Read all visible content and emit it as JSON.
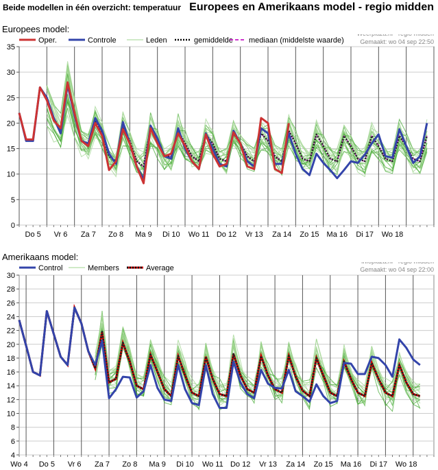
{
  "header": {
    "left_title": "Beide modellen in één overzicht: temperatuur",
    "right_title": "Europees en Amerikaans model - regio midden"
  },
  "colors": {
    "oper": "#cc3333",
    "control": "#3344aa",
    "members": "#44aa33",
    "members_light": "#9fd48f",
    "average_dark": "#222222",
    "average_red": "#cc0000",
    "median": "#cc33cc",
    "grid": "#cccccc",
    "daylines": "#555555"
  },
  "chart_data": [
    {
      "type": "line",
      "section_title": "Europees model:",
      "source": "Weerplaza.nl - regio midden",
      "made": "Gemaakt: wo 04 sep 22:50",
      "legend": [
        "Oper.",
        "Controle",
        "Leden",
        "gemiddelde",
        "mediaan (middelste waarde)"
      ],
      "ylim": [
        0,
        35
      ],
      "yticks": [
        0,
        5,
        10,
        15,
        20,
        25,
        30,
        35
      ],
      "xlim": [
        0,
        60
      ],
      "day_lines": [
        0,
        4,
        8,
        12,
        16,
        20,
        24,
        28,
        32,
        36,
        40,
        44,
        48,
        52,
        56,
        60
      ],
      "xtick_labels": [
        {
          "t": 2,
          "label": "Do 5"
        },
        {
          "t": 6,
          "label": "Vr 6"
        },
        {
          "t": 10,
          "label": "Za 7"
        },
        {
          "t": 14,
          "label": "Zo 8"
        },
        {
          "t": 18,
          "label": "Ma 9"
        },
        {
          "t": 22,
          "label": "Di 10"
        },
        {
          "t": 26,
          "label": "Wo 11"
        },
        {
          "t": 30,
          "label": "Do 12"
        },
        {
          "t": 34,
          "label": "Vr 13"
        },
        {
          "t": 38,
          "label": "Za 14"
        },
        {
          "t": 42,
          "label": "Zo 15"
        },
        {
          "t": 46,
          "label": "Ma 16"
        },
        {
          "t": 50,
          "label": "Di 17"
        },
        {
          "t": 54,
          "label": "Wo 18"
        }
      ],
      "series": [
        {
          "name": "Oper.",
          "style": "oper",
          "t0": 0,
          "values": [
            22,
            16.8,
            16.8,
            27,
            24.5,
            20.5,
            19,
            28,
            22,
            16.5,
            15.5,
            20,
            17.5,
            10.8,
            12.5,
            18.8,
            16,
            11.5,
            8.2,
            19,
            16,
            13.5,
            14,
            18,
            15.5,
            12.5,
            11,
            17.8,
            14,
            11.5,
            12,
            18.2,
            16,
            11.5,
            11,
            21,
            20,
            11,
            10.2,
            20
          ]
        },
        {
          "name": "Controle",
          "style": "control",
          "t0": 0,
          "values": [
            22,
            16.5,
            16.5,
            27,
            25,
            21,
            18,
            27.5,
            21.5,
            16.5,
            16,
            21,
            18.5,
            14,
            12,
            20.2,
            16,
            11.5,
            9,
            19.5,
            17,
            13.5,
            13,
            19,
            15,
            12.5,
            11,
            18,
            15,
            12,
            11.5,
            18.5,
            16,
            12.5,
            11.5,
            19,
            18,
            12,
            12,
            18,
            14,
            11,
            9.8,
            14,
            12.2,
            10.8,
            9.2,
            10.8,
            12.5,
            12.2,
            13.8,
            16,
            17.8,
            13.5,
            13.2,
            18.8,
            15.5,
            12.2,
            13.5,
            20
          ]
        },
        {
          "name": "gemiddelde",
          "style": "avg_dark",
          "t0": 0,
          "values": [
            22,
            16.6,
            16.6,
            27,
            24.8,
            21,
            18.5,
            27.8,
            22,
            16.5,
            15.5,
            20.5,
            18,
            13.5,
            12.5,
            19.5,
            16.5,
            12.5,
            11.5,
            19,
            16.5,
            13.5,
            13.5,
            18.5,
            16,
            13.5,
            12.5,
            17.8,
            16,
            13,
            12.5,
            18,
            16,
            13.5,
            12.5,
            18,
            16.5,
            13.5,
            12.5,
            18.5,
            16,
            13,
            12.5,
            17.8,
            15.5,
            13,
            12.5,
            17.5,
            15.5,
            13,
            12.5,
            17.5,
            15.5,
            13,
            12.5,
            17.5,
            15.5,
            13,
            12.5,
            17.5
          ]
        },
        {
          "name": "mediaan (middelste waarde)",
          "style": "median",
          "t0": 0,
          "values": [
            22,
            16.6,
            16.6,
            27,
            24.8,
            21,
            18.5,
            27.8,
            22,
            16.5,
            15.5,
            20.5,
            18,
            13.5,
            12.5,
            19.5,
            16.5,
            12.5,
            11.5,
            19,
            16.5,
            13.5,
            13.5,
            18.5,
            16,
            13.5,
            12.5,
            17.8,
            16,
            13,
            12.5,
            18,
            16,
            13.5,
            12.5,
            18,
            16.5,
            13.5,
            12.5,
            18.5,
            16,
            13,
            12.5,
            17.8,
            15.5,
            13,
            12.5,
            17.5,
            15.5,
            13,
            12.5,
            17.5,
            15.5,
            13,
            12.5,
            17.5,
            15.5,
            13,
            12.5,
            17.5
          ]
        }
      ],
      "members_ensemble": {
        "count": 22,
        "t_start": 4,
        "spread": 3.6,
        "generated": true
      }
    },
    {
      "type": "line",
      "section_title": "Amerikaans model:",
      "source": "Infoplaza.nl - regio midden",
      "made": "Gemaakt: wo 04 sep 22:00",
      "legend": [
        "Control",
        "Members",
        "Average"
      ],
      "ylim": [
        4,
        30
      ],
      "yticks": [
        4,
        6,
        8,
        10,
        12,
        14,
        16,
        18,
        20,
        22,
        24,
        26,
        28,
        30
      ],
      "xlim": [
        0,
        60
      ],
      "day_lines": [
        1,
        5,
        9,
        13,
        17,
        21,
        25,
        29,
        33,
        37,
        41,
        45,
        49,
        53,
        57
      ],
      "xtick_labels": [
        {
          "t": 0,
          "label": "Wo 4"
        },
        {
          "t": 4,
          "label": "Do 5"
        },
        {
          "t": 8,
          "label": "Vr 6"
        },
        {
          "t": 12,
          "label": "Za 7"
        },
        {
          "t": 16,
          "label": "Zo 8"
        },
        {
          "t": 20,
          "label": "Ma 9"
        },
        {
          "t": 24,
          "label": "Di 10"
        },
        {
          "t": 28,
          "label": "Wo 11"
        },
        {
          "t": 32,
          "label": "Do 12"
        },
        {
          "t": 36,
          "label": "Vr 13"
        },
        {
          "t": 40,
          "label": "Za 14"
        },
        {
          "t": 44,
          "label": "Zo 15"
        },
        {
          "t": 48,
          "label": "Ma 16"
        },
        {
          "t": 52,
          "label": "Di 17"
        },
        {
          "t": 56,
          "label": "Wo 18"
        }
      ],
      "series": [
        {
          "name": "Control",
          "style": "control",
          "t0": 0,
          "values": [
            23.5,
            19.8,
            16,
            15.5,
            24.8,
            21.5,
            18.2,
            17,
            25.3,
            23,
            19,
            17,
            20.5,
            12.2,
            13.5,
            15.3,
            15.2,
            12.3,
            13.2,
            17,
            13.7,
            12,
            11.8,
            17,
            13.5,
            11.5,
            11.2,
            17,
            12.8,
            10.8,
            10.8,
            17.5,
            14.5,
            12.8,
            12.2,
            16.3,
            14.3,
            13.7,
            13.6,
            16.3,
            13.2,
            12.5,
            11.7,
            14.2,
            12.5,
            11.5,
            11.8,
            17.3,
            17.2,
            15.7,
            15.7,
            18.2,
            18,
            17,
            15.3,
            20.7,
            19.5,
            17.8,
            17
          ]
        },
        {
          "name": "Average",
          "style": "avg_red",
          "t0": 0,
          "values": [
            23.5,
            19.8,
            16,
            15.5,
            24.8,
            21.5,
            18.2,
            17,
            25.3,
            23,
            19,
            16.5,
            21.8,
            14.5,
            15,
            20.2,
            17.5,
            14,
            13.5,
            18.5,
            16,
            13.5,
            12.5,
            18.3,
            15.5,
            13,
            12.5,
            18.2,
            15,
            12.8,
            12.5,
            18.6,
            15.5,
            13.5,
            13,
            18.3,
            15.5,
            13.5,
            13,
            18.3,
            15.3,
            13.3,
            12.5,
            18,
            15.5,
            13,
            12.5,
            17.5,
            15,
            13,
            12.5,
            17.3,
            15,
            13,
            12.5,
            17,
            14.5,
            12.8,
            12.5
          ]
        }
      ],
      "members_ensemble": {
        "count": 20,
        "t_start": 11,
        "spread": 2.6,
        "generated": true
      }
    }
  ]
}
